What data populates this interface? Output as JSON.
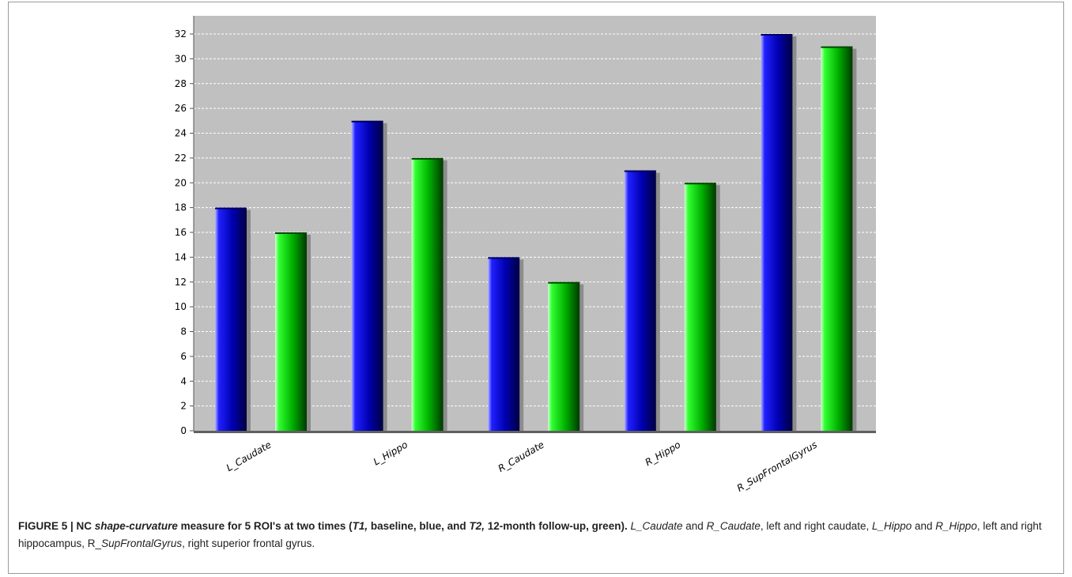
{
  "chart_data": {
    "type": "bar",
    "categories": [
      "L_Caudate",
      "L_Hippo",
      "R_Caudate",
      "R_Hippo",
      "R_SupFrontalGyrus"
    ],
    "series": [
      {
        "values": [
          18,
          25,
          14,
          21,
          32
        ],
        "color": "#0a0ad8"
      },
      {
        "values": [
          16,
          22,
          12,
          20,
          31
        ],
        "color": "#10d010"
      }
    ],
    "ylim": [
      0,
      33
    ],
    "yticks": [
      0,
      2,
      4,
      6,
      8,
      10,
      12,
      14,
      16,
      18,
      20,
      22,
      24,
      26,
      28,
      30,
      32
    ],
    "plot_background": "#c0c0c0",
    "grid": true,
    "title": "",
    "xlabel": "",
    "ylabel": ""
  },
  "caption": {
    "bold_1": "FIGURE 5 | NC ",
    "bold_2": "shape-curvature",
    "bold_3": " measure for 5 ROI's at two times (",
    "bold_4": "T1,",
    "bold_5": " baseline, blue, and ",
    "bold_6": "T2,",
    "bold_7": " 12-month follow-up, green).",
    "t1": " ",
    "i1": "L_Caudate",
    "t2": " and ",
    "i2": "R_Caudate",
    "t3": ", left and right caudate, ",
    "i3": "L_Hippo",
    "t4": " and ",
    "i4": "R_Hippo",
    "t5": ", left and right hippocampus, R_",
    "i5": "SupFrontalGyrus",
    "t6": ", right superior frontal gyrus."
  }
}
